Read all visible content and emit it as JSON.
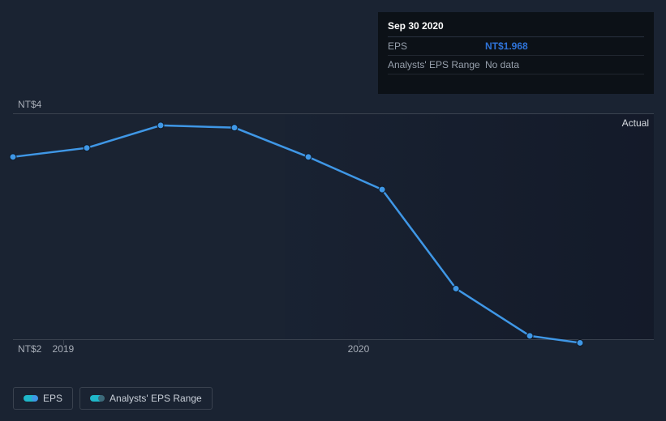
{
  "tooltip": {
    "date": "Sep 30 2020",
    "rows": [
      {
        "label": "EPS",
        "value": "NT$1.968",
        "highlight": true
      },
      {
        "label": "Analysts' EPS Range",
        "value": "No data",
        "highlight": false
      }
    ]
  },
  "chart": {
    "type": "line",
    "ylim": [
      2,
      4
    ],
    "ytick_labels": {
      "top": "NT$4",
      "bottom": "NT$2"
    },
    "x_start": 2018.83,
    "x_end": 2021.0,
    "xticks": [
      {
        "x": 2019.0,
        "label": "2019"
      },
      {
        "x": 2020.0,
        "label": "2020"
      }
    ],
    "shade_from_x": 2019.75,
    "actual_label": "Actual",
    "series": {
      "name": "EPS",
      "color": "#3f97e6",
      "line_width": 2.5,
      "marker_radius": 4,
      "points": [
        {
          "x": 2018.83,
          "y": 3.62
        },
        {
          "x": 2019.08,
          "y": 3.7
        },
        {
          "x": 2019.33,
          "y": 3.9
        },
        {
          "x": 2019.58,
          "y": 3.88
        },
        {
          "x": 2019.83,
          "y": 3.62
        },
        {
          "x": 2020.08,
          "y": 3.33
        },
        {
          "x": 2020.33,
          "y": 2.45
        },
        {
          "x": 2020.58,
          "y": 2.03
        },
        {
          "x": 2020.75,
          "y": 1.968
        }
      ]
    },
    "background_color": "#1a2332",
    "grid_color": "#3a424f",
    "label_color": "#a7adb7",
    "label_fontsize": 12
  },
  "legend": {
    "items": [
      {
        "label": "EPS",
        "color_left": "#1fb7c9",
        "color_right": "#3f97e6"
      },
      {
        "label": "Analysts' EPS Range",
        "color_left": "#1fb7c9",
        "color_right": "#3d6a7a"
      }
    ]
  }
}
